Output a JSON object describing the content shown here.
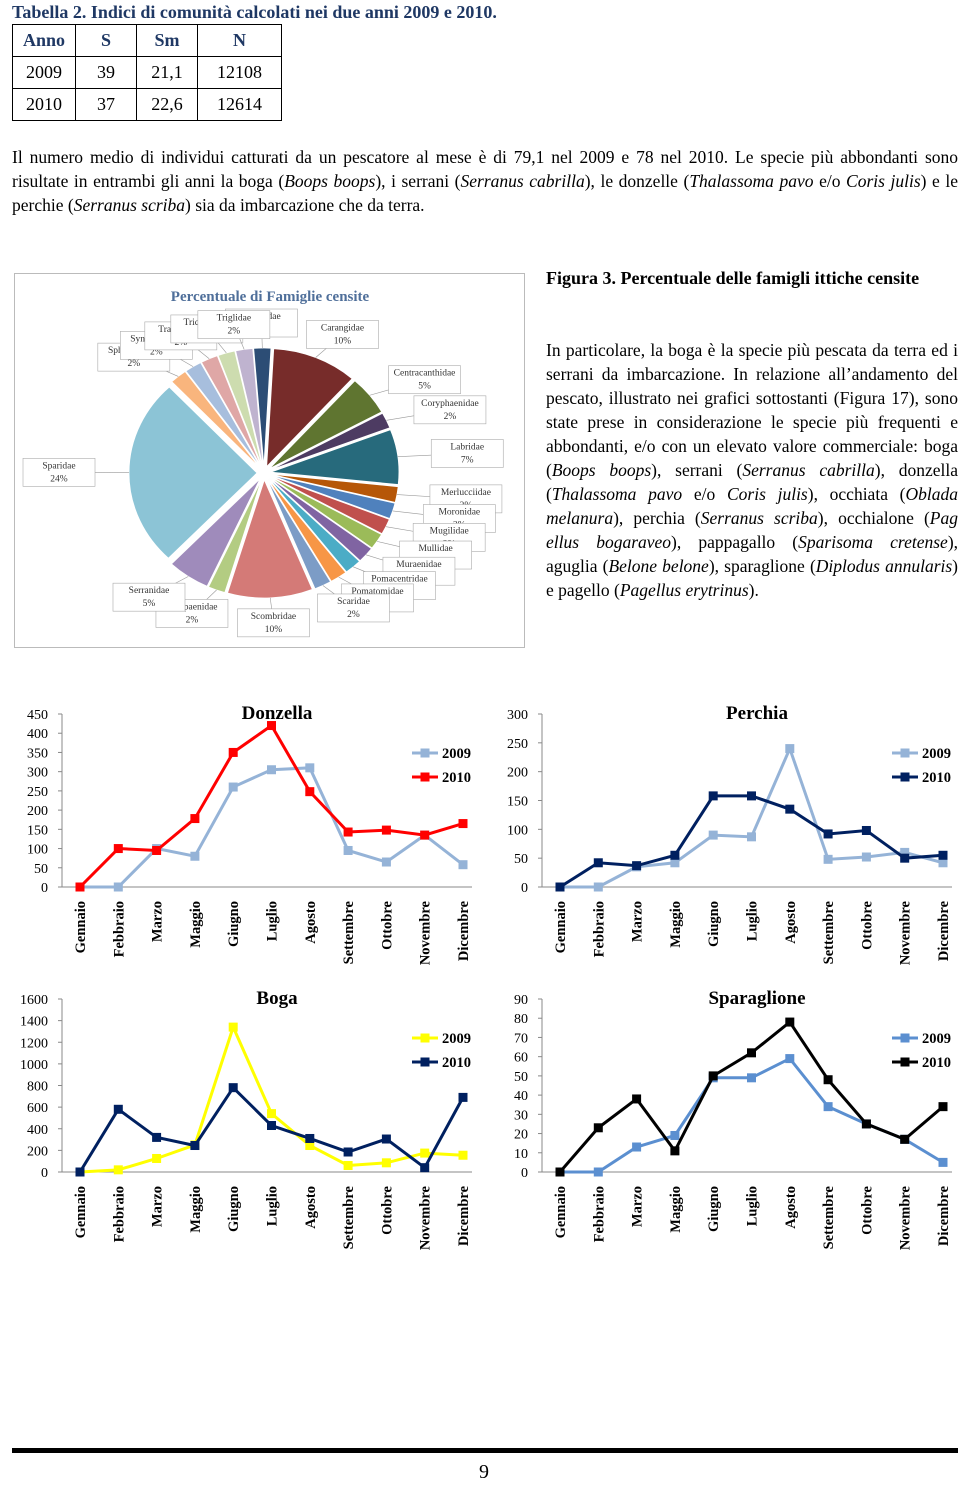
{
  "table": {
    "caption": "Tabella 2. Indici di comunità calcolati nei due anni 2009 e 2010.",
    "headers": [
      "Anno",
      "S",
      "Sm",
      "N"
    ],
    "rows": [
      [
        "2009",
        "39",
        "21,1",
        "12108"
      ],
      [
        "2010",
        "37",
        "22,6",
        "12614"
      ]
    ]
  },
  "paragraphs": [
    {
      "runs": [
        {
          "text": "Il numero medio di individui catturati da un pescatore al mese è di 79,1 nel 2009 e 78 nel 2010. Le specie più abbondanti sono risultate in entrambi gli anni la boga ("
        },
        {
          "text": "Boops boops",
          "italic": true
        },
        {
          "text": "), i serrani ("
        },
        {
          "text": "Serranus cabrilla",
          "italic": true
        },
        {
          "text": "), le donzelle ("
        },
        {
          "text": "Thalassoma pavo",
          "italic": true
        },
        {
          "text": " e/o "
        },
        {
          "text": "Coris julis",
          "italic": true
        },
        {
          "text": ") e le perchie ("
        },
        {
          "text": "Serranus scriba",
          "italic": true
        },
        {
          "text": ") sia da imbarcazione che da terra."
        }
      ]
    },
    {
      "runs": [
        {
          "text": "In particolare, la boga è la specie più pescata da terra ed i serrani da imbarcazione. In relazione all’andamento del pescato, illustrato nei grafici sottostanti (Figura 17), sono state prese in considerazione le specie più frequenti e abbondanti, e/o con un elevato valore commerciale: boga ("
        },
        {
          "text": "Boops boops",
          "italic": true
        },
        {
          "text": "), serrani ("
        },
        {
          "text": "Serranus cabrilla",
          "italic": true
        },
        {
          "text": "), donzella ("
        },
        {
          "text": "Thalassoma pavo",
          "italic": true
        },
        {
          "text": " e/o "
        },
        {
          "text": "Coris julis",
          "italic": true
        },
        {
          "text": "), occhiata ("
        },
        {
          "text": "Oblada melanura",
          "italic": true
        },
        {
          "text": "), perchia ("
        },
        {
          "text": "Serranus scriba",
          "italic": true
        },
        {
          "text": "), occhialone ("
        },
        {
          "text": "Pag ellus bogaraveo",
          "italic": true
        },
        {
          "text": "), pappagallo ("
        },
        {
          "text": "Sparisoma cretense",
          "italic": true
        },
        {
          "text": "), aguglia ("
        },
        {
          "text": "Belone belone",
          "italic": true
        },
        {
          "text": "), sparaglione ("
        },
        {
          "text": "Diplodus annularis",
          "italic": true
        },
        {
          "text": ") e pagello ("
        },
        {
          "text": "Pagellus erytrinus",
          "italic": true
        },
        {
          "text": ")."
        }
      ]
    }
  ],
  "figure_caption": "Figura 3. Percentuale delle famigli ittiche censite",
  "page_number": "9",
  "chart_data": [
    {
      "type": "pie",
      "title": "Percentuale di Famiglie censite",
      "categories": [
        "Belonidae",
        "Carangidae",
        "Centracanthidae",
        "Coryphaenidae",
        "Labridae",
        "Merlucciidae",
        "Moronidae",
        "Mugilidae",
        "Mullidae",
        "Muraenidae",
        "Pomacentridae",
        "Pomatomidae",
        "Scaridae",
        "Scombridae",
        "Scorpaenidae",
        "Serranidae",
        "Sparidae",
        "Sphyraenidae",
        "Synodontidae",
        "Trachinidae",
        "Trichiuridae",
        "Triglidae"
      ],
      "values": [
        2,
        10,
        5,
        2,
        7,
        2,
        2,
        2,
        2,
        2,
        2,
        2,
        2,
        10,
        2,
        5,
        24,
        2,
        2,
        2,
        2,
        2
      ],
      "value_labels": [
        "2%",
        "10%",
        "5%",
        "2%",
        "7%",
        "2%",
        "2%",
        "2%",
        "2%",
        "2%",
        "2%",
        "2%",
        "2%",
        "10%",
        "2%",
        "5%",
        "24%",
        "2%",
        "2%",
        "2%",
        "2%",
        "2%"
      ],
      "colors": [
        "#2c4d75",
        "#772c2a",
        "#5f7530",
        "#4d3b62",
        "#276a7c",
        "#b65708",
        "#4f81bd",
        "#c0504d",
        "#9bbb59",
        "#8064a2",
        "#4bacc6",
        "#f79646",
        "#7c9cc6",
        "#d47a77",
        "#b3cc82",
        "#9f8bbb",
        "#8cc4d6",
        "#f9b57d",
        "#a7bedd",
        "#dfa7a6",
        "#cddcaf",
        "#bfb3cf"
      ]
    },
    {
      "type": "line",
      "title": "Donzella",
      "categories": [
        "Gennaio",
        "Febbraio",
        "Marzo",
        "Maggio",
        "Giugno",
        "Luglio",
        "Agosto",
        "Settembre",
        "Ottobre",
        "Novembre",
        "Dicembre"
      ],
      "series": [
        {
          "name": "2009",
          "color": "#95b3d7",
          "values": [
            0,
            0,
            100,
            80,
            260,
            305,
            310,
            95,
            65,
            135,
            58
          ]
        },
        {
          "name": "2010",
          "color": "#ff0000",
          "values": [
            0,
            100,
            95,
            178,
            350,
            420,
            248,
            143,
            148,
            135,
            165
          ]
        }
      ],
      "ylim": [
        0,
        450
      ],
      "yticks": [
        0,
        50,
        100,
        150,
        200,
        250,
        300,
        350,
        400,
        450
      ]
    },
    {
      "type": "line",
      "title": "Perchia",
      "categories": [
        "Gennaio",
        "Febbraio",
        "Marzo",
        "Maggio",
        "Giugno",
        "Luglio",
        "Agosto",
        "Settembre",
        "Ottobre",
        "Novembre",
        "Dicembre"
      ],
      "series": [
        {
          "name": "2009",
          "color": "#95b3d7",
          "values": [
            0,
            0,
            35,
            42,
            90,
            87,
            240,
            48,
            52,
            60,
            42
          ]
        },
        {
          "name": "2010",
          "color": "#002060",
          "values": [
            0,
            42,
            37,
            55,
            158,
            158,
            135,
            92,
            98,
            50,
            55
          ]
        }
      ],
      "ylim": [
        0,
        300
      ],
      "yticks": [
        0,
        50,
        100,
        150,
        200,
        250,
        300
      ]
    },
    {
      "type": "line",
      "title": "Boga",
      "categories": [
        "Gennaio",
        "Febbraio",
        "Marzo",
        "Maggio",
        "Giugno",
        "Luglio",
        "Agosto",
        "Settembre",
        "Ottobre",
        "Novembre",
        "Dicembre"
      ],
      "series": [
        {
          "name": "2009",
          "color": "#ffff00",
          "values": [
            0,
            20,
            125,
            250,
            1340,
            540,
            245,
            60,
            85,
            175,
            155
          ]
        },
        {
          "name": "2010",
          "color": "#002060",
          "values": [
            0,
            580,
            320,
            245,
            780,
            430,
            310,
            185,
            305,
            40,
            690
          ]
        }
      ],
      "ylim": [
        0,
        1600
      ],
      "yticks": [
        0,
        200,
        400,
        600,
        800,
        1000,
        1200,
        1400,
        1600
      ]
    },
    {
      "type": "line",
      "title": "Sparaglione",
      "categories": [
        "Gennaio",
        "Febbraio",
        "Marzo",
        "Maggio",
        "Giugno",
        "Luglio",
        "Agosto",
        "Settembre",
        "Ottobre",
        "Novembre",
        "Dicembre"
      ],
      "series": [
        {
          "name": "2009",
          "color": "#5b8fd0",
          "values": [
            0,
            0,
            13,
            19,
            49,
            49,
            59,
            34,
            25,
            17,
            5
          ]
        },
        {
          "name": "2010",
          "color": "#000000",
          "values": [
            0,
            23,
            38,
            11,
            50,
            62,
            78,
            48,
            25,
            17,
            34
          ]
        }
      ],
      "ylim": [
        0,
        90
      ],
      "yticks": [
        0,
        10,
        20,
        30,
        40,
        50,
        60,
        70,
        80,
        90
      ]
    }
  ]
}
